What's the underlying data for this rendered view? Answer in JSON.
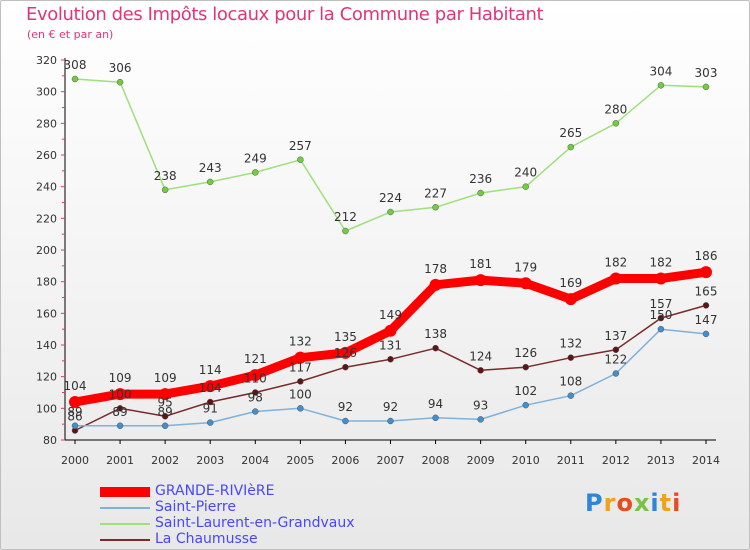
{
  "header": {
    "title": "Evolution des Impôts locaux pour la Commune par Habitant",
    "subtitle": "(en € et par an)"
  },
  "logo": {
    "text": "Proxiti"
  },
  "colors": {
    "title": "#e2347a",
    "legend_text": "#4747ff",
    "axis_tick": "#e2347a"
  },
  "chart_data": {
    "type": "line",
    "title": "Evolution des Impôts locaux pour la Commune par Habitant",
    "subtitle": "(en € et par an)",
    "xlabel": "",
    "ylabel": "",
    "x": [
      "2000",
      "2001",
      "2002",
      "2003",
      "2004",
      "2005",
      "2006",
      "2007",
      "2008",
      "2009",
      "2010",
      "2011",
      "2012",
      "2013",
      "2014"
    ],
    "ylim": [
      80,
      320
    ],
    "yticks": [
      80,
      100,
      120,
      140,
      160,
      180,
      200,
      220,
      240,
      260,
      280,
      300,
      320
    ],
    "grid": false,
    "legend_position": "bottom-left",
    "series": [
      {
        "name": "GRANDE-RIVIèRE",
        "color": "#ff0000",
        "marker": "#ff0000",
        "values": [
          104,
          109,
          109,
          114,
          121,
          132,
          135,
          149,
          178,
          181,
          179,
          169,
          182,
          182,
          186
        ]
      },
      {
        "name": "Saint-Pierre",
        "color": "#7fb1d9",
        "marker": "#3f8fd1",
        "values": [
          89,
          89,
          89,
          91,
          98,
          100,
          92,
          92,
          94,
          93,
          102,
          108,
          122,
          150,
          147
        ]
      },
      {
        "name": "Saint-Laurent-en-Grandvaux",
        "color": "#9ee07a",
        "marker": "#6fcf3a",
        "values": [
          308,
          306,
          238,
          243,
          249,
          257,
          212,
          224,
          227,
          236,
          240,
          265,
          280,
          304,
          303
        ]
      },
      {
        "name": "La Chaumusse",
        "color": "#7a2a2a",
        "marker": "#5c1414",
        "values": [
          86,
          100,
          95,
          104,
          110,
          117,
          126,
          131,
          138,
          124,
          126,
          132,
          137,
          157,
          165
        ]
      }
    ],
    "data_labels": [
      [
        "104",
        "109",
        "109",
        "114",
        "121",
        "132",
        "135",
        "149",
        "178",
        "181",
        "179",
        "169",
        "182",
        "182",
        "186"
      ],
      [
        "89",
        "89",
        "89",
        "91",
        "98",
        "100",
        "92",
        "92",
        "94",
        "93",
        "102",
        "108",
        "122",
        "150",
        "147"
      ],
      [
        "308",
        "306",
        "238",
        "243",
        "249",
        "257",
        "212",
        "224",
        "227",
        "236",
        "240",
        "265",
        "280",
        "304",
        "303"
      ],
      [
        "86",
        "100",
        "95",
        "104",
        "110",
        "117",
        "126",
        "131",
        "138",
        "124",
        "126",
        "132",
        "137",
        "157",
        "165"
      ]
    ]
  }
}
